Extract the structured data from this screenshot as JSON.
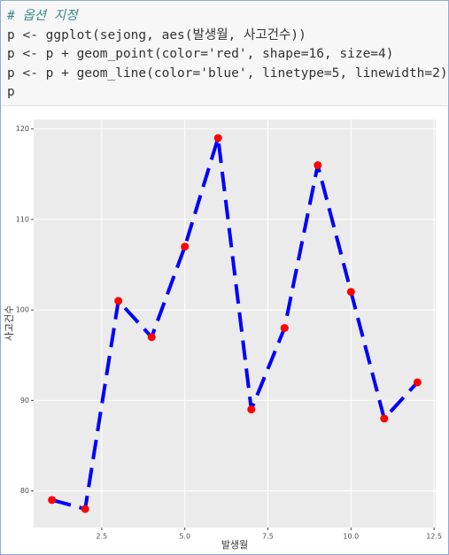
{
  "code": [
    "# 옵션 지정",
    "p <- ggplot(sejong, aes(발생월, 사고건수))",
    "p <- p + geom_point(color='red', shape=16, size=4)",
    "p <- p + geom_line(color='blue', linetype=5, linewidth=2)",
    "p"
  ],
  "chart_data": {
    "type": "line",
    "x_label": "발생월",
    "y_label": "사고건수",
    "x": [
      1,
      2,
      3,
      4,
      5,
      6,
      7,
      8,
      9,
      10,
      11,
      12
    ],
    "y": [
      79,
      78,
      101,
      97,
      107,
      119,
      89,
      98,
      116,
      102,
      88,
      92
    ],
    "line_color": "blue",
    "point_color": "red",
    "xlim": [
      0.45,
      12.55
    ],
    "ylim": [
      75.95,
      121.05
    ],
    "xticks": [
      2.5,
      {
        "value": 5,
        "label": "5.0"
      },
      7.5,
      {
        "value": 10,
        "label": "10.0"
      },
      12.5
    ],
    "yticks": [
      80,
      90,
      100,
      110,
      120
    ],
    "grid": true
  }
}
